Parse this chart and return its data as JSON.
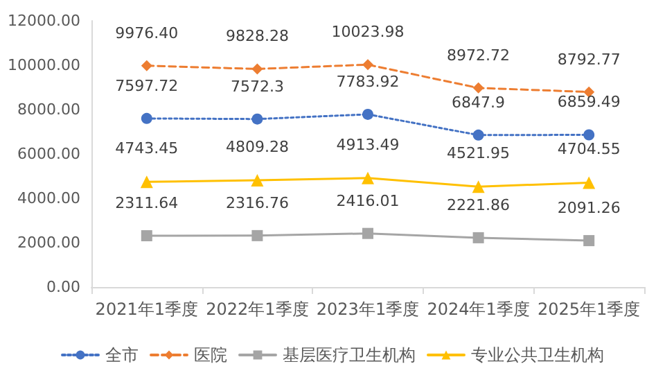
{
  "chart_data": {
    "type": "line",
    "categories": [
      "2021年1季度",
      "2022年1季度",
      "2023年1季度",
      "2024年1季度",
      "2025年1季度"
    ],
    "series": [
      {
        "name": "全市",
        "color": "#4472c4",
        "marker": "circle",
        "line_style": "dotted",
        "values": [
          7597.72,
          7572.3,
          7783.92,
          6847.9,
          6859.49
        ],
        "value_labels": [
          "7597.72",
          "7572.3",
          "7783.92",
          "6847.9",
          "6859.49"
        ]
      },
      {
        "name": "医院",
        "color": "#ed7d31",
        "marker": "diamond",
        "line_style": "dashed",
        "values": [
          9976.4,
          9828.28,
          10023.98,
          8972.72,
          8792.77
        ],
        "value_labels": [
          "9976.40",
          "9828.28",
          "10023.98",
          "8972.72",
          "8792.77"
        ]
      },
      {
        "name": "基层医疗卫生机构",
        "color": "#a5a5a5",
        "marker": "square",
        "line_style": "solid",
        "values": [
          2311.64,
          2316.76,
          2416.01,
          2221.86,
          2091.26
        ],
        "value_labels": [
          "2311.64",
          "2316.76",
          "2416.01",
          "2221.86",
          "2091.26"
        ]
      },
      {
        "name": "专业公共卫生机构",
        "color": "#ffc000",
        "marker": "triangle",
        "line_style": "solid",
        "values": [
          4743.45,
          4809.28,
          4913.49,
          4521.95,
          4704.55
        ],
        "value_labels": [
          "4743.45",
          "4809.28",
          "4913.49",
          "4521.95",
          "4704.55"
        ]
      }
    ],
    "ylim": [
      0,
      12000
    ],
    "yticks": [
      {
        "value": 0,
        "label": "0.00"
      },
      {
        "value": 2000,
        "label": "2000.00"
      },
      {
        "value": 4000,
        "label": "4000.00"
      },
      {
        "value": 6000,
        "label": "6000.00"
      },
      {
        "value": 8000,
        "label": "8000.00"
      },
      {
        "value": 10000,
        "label": "10000.00"
      },
      {
        "value": 12000,
        "label": "12000.00"
      }
    ],
    "grid": false,
    "legend": "bottom"
  }
}
